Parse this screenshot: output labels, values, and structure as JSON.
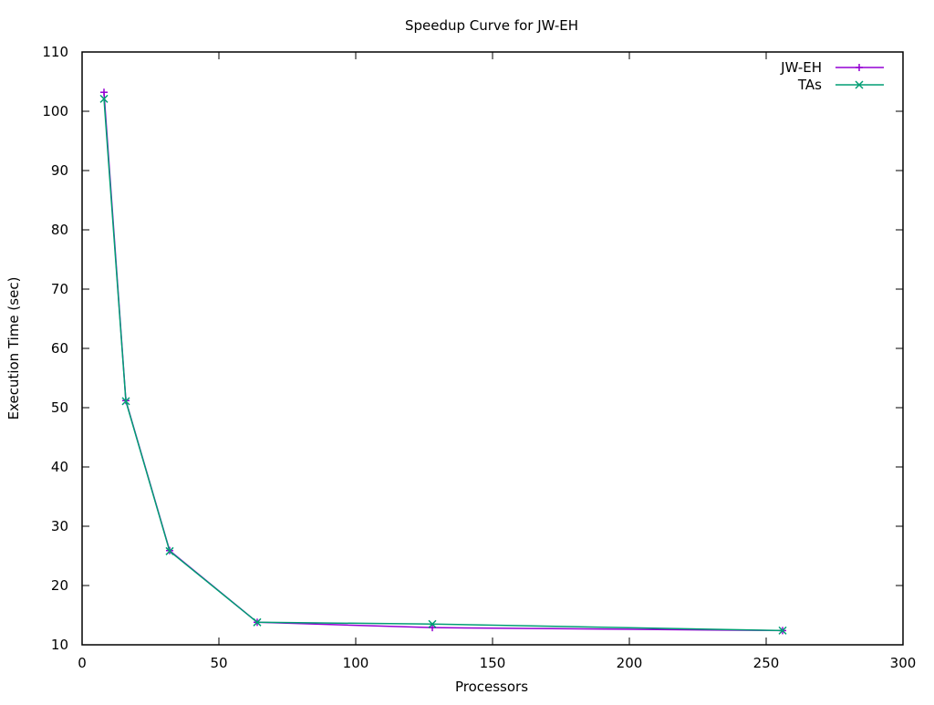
{
  "chart_data": {
    "type": "line",
    "title": "Speedup Curve for JW-EH",
    "xlabel": "Processors",
    "ylabel": "Execution Time (sec)",
    "xlim": [
      0,
      300
    ],
    "ylim": [
      10,
      110
    ],
    "x_ticks": [
      0,
      50,
      100,
      150,
      200,
      250,
      300
    ],
    "y_ticks": [
      10,
      20,
      30,
      40,
      50,
      60,
      70,
      80,
      90,
      100,
      110
    ],
    "grid": false,
    "legend_position": "top-right",
    "series": [
      {
        "name": "JW-EH",
        "color": "#9400d3",
        "marker": "plus",
        "x": [
          8,
          16,
          32,
          64,
          128,
          256
        ],
        "y": [
          103.2,
          51.2,
          25.9,
          13.8,
          12.9,
          12.4
        ]
      },
      {
        "name": "TAs",
        "color": "#009e73",
        "marker": "cross",
        "x": [
          8,
          16,
          32,
          64,
          128,
          256
        ],
        "y": [
          102.1,
          51.1,
          25.8,
          13.8,
          13.5,
          12.4
        ]
      }
    ]
  }
}
